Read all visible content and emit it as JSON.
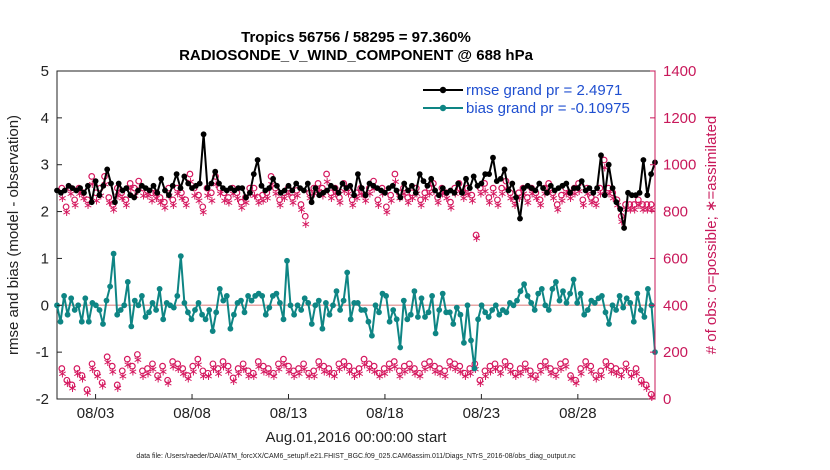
{
  "chart_data": {
    "type": "line",
    "title_line1": "Tropics 56756 / 58295 = 97.360%",
    "title_line2": "RADIOSONDE_V_WIND_COMPONENT @ 688 hPa",
    "ylabel": "rmse and bias (model - observation)",
    "ylabel_right": "# of obs: o=possible; ∗=assimilated",
    "xlabel": "Aug.01,2016 00:00:00 start",
    "footer": "data file: /Users/raeder/DAI/ATM_forcXX/CAM6_setup/f.e21.FHIST_BGC.f09_025.CAM6assim.011/Diags_NTrS_2016-08/obs_diag_output.nc",
    "ylim": [
      -2,
      5
    ],
    "ylim_right": [
      0,
      1400
    ],
    "xlim": [
      1,
      32
    ],
    "x_ticks": [
      3,
      8,
      13,
      18,
      23,
      28
    ],
    "x_tick_labels": [
      "08/03",
      "08/08",
      "08/13",
      "08/18",
      "08/23",
      "08/28"
    ],
    "y_ticks": [
      -2,
      -1,
      0,
      1,
      2,
      3,
      4,
      5
    ],
    "y_ticks_right": [
      0,
      200,
      400,
      600,
      800,
      1000,
      1200,
      1400
    ],
    "legend": [
      {
        "label": "rmse grand pr = 2.4971",
        "color": "#000000"
      },
      {
        "label": "bias grand pr = -0.10975",
        "color": "#0e8584"
      }
    ],
    "colors": {
      "rmse": "#000000",
      "bias": "#0e8584",
      "obs": "#d5185f",
      "zero_line": "#e8a7a7"
    },
    "rmse": [
      2.45,
      2.4,
      2.45,
      2.55,
      2.5,
      2.45,
      2.5,
      2.4,
      2.55,
      2.2,
      2.65,
      2.35,
      2.55,
      2.9,
      2.6,
      2.2,
      2.6,
      2.45,
      2.5,
      2.35,
      2.3,
      2.45,
      2.55,
      2.5,
      2.45,
      2.55,
      2.4,
      2.7,
      2.45,
      2.35,
      2.55,
      2.8,
      2.5,
      2.75,
      2.6,
      2.5,
      2.55,
      2.6,
      3.65,
      2.5,
      2.6,
      2.85,
      2.6,
      2.5,
      2.45,
      2.5,
      2.45,
      2.5,
      2.5,
      2.3,
      2.4,
      2.8,
      3.1,
      2.55,
      2.45,
      2.5,
      2.7,
      2.55,
      2.4,
      2.45,
      2.55,
      2.45,
      2.6,
      2.5,
      2.45,
      2.6,
      2.2,
      2.5,
      2.35,
      2.4,
      2.45,
      2.55,
      2.5,
      2.4,
      2.6,
      2.5,
      2.55,
      2.35,
      2.8,
      2.5,
      2.35,
      2.6,
      2.55,
      2.5,
      2.45,
      2.4,
      2.5,
      2.55,
      2.45,
      2.3,
      2.6,
      2.45,
      2.55,
      2.4,
      2.8,
      2.65,
      2.55,
      2.7,
      2.45,
      2.35,
      2.5,
      2.4,
      2.45,
      2.4,
      2.6,
      2.4,
      2.7,
      2.5,
      2.75,
      2.55,
      2.6,
      2.8,
      2.8,
      3.15,
      2.65,
      2.7,
      2.9,
      2.45,
      2.6,
      2.3,
      1.85,
      2.5,
      2.55,
      2.5,
      2.45,
      2.6,
      2.5,
      2.4,
      2.55,
      2.45,
      2.5,
      2.55,
      2.6,
      2.4,
      2.5,
      2.5,
      2.65,
      2.45,
      2.5,
      2.4,
      2.5,
      3.2,
      2.35,
      3.0,
      2.5,
      2.2,
      2.05,
      1.65,
      2.4,
      2.35,
      2.35,
      2.4,
      3.1,
      2.35,
      2.8,
      3.05
    ],
    "bias": [
      0.0,
      -0.35,
      0.2,
      -0.2,
      0.15,
      -0.1,
      0.0,
      -0.35,
      0.15,
      -0.35,
      0.05,
      0.0,
      -0.1,
      -0.4,
      0.1,
      0.4,
      1.1,
      -0.2,
      -0.1,
      0.0,
      0.5,
      -0.45,
      0.1,
      0.0,
      0.2,
      -0.25,
      -0.15,
      0.05,
      -0.1,
      0.35,
      -0.3,
      0.05,
      0.0,
      -0.05,
      0.2,
      1.05,
      0.05,
      -0.15,
      -0.3,
      -0.1,
      0.05,
      -0.2,
      -0.3,
      -0.1,
      -0.55,
      -0.15,
      0.35,
      0.1,
      0.2,
      -0.5,
      -0.2,
      0.05,
      0.1,
      -0.15,
      0.2,
      0.1,
      0.2,
      0.25,
      0.2,
      -0.2,
      -0.05,
      0.2,
      0.25,
      0.05,
      -0.3,
      0.95,
      0.0,
      -0.2,
      0.0,
      -0.1,
      0.15,
      0.05,
      -0.4,
      0.0,
      0.1,
      -0.5,
      0.05,
      -0.2,
      0.0,
      0.3,
      -0.1,
      0.1,
      0.7,
      -0.3,
      0.05,
      0.05,
      -0.1,
      -0.1,
      -0.35,
      -0.65,
      0.0,
      -0.15,
      0.25,
      0.2,
      -0.35,
      -0.1,
      -0.3,
      -0.9,
      0.1,
      -0.3,
      -0.2,
      0.3,
      -0.25,
      0.15,
      -0.25,
      -0.15,
      0.2,
      -0.6,
      -0.1,
      0.25,
      -0.15,
      -0.15,
      -0.4,
      -0.05,
      -0.2,
      -0.8,
      0.0,
      -0.75,
      -1.35,
      -0.3,
      0.0,
      -0.15,
      -0.25,
      -0.1,
      0.0,
      -0.2,
      -0.1,
      -0.15,
      0.05,
      0.0,
      0.1,
      0.3,
      0.45,
      0.2,
      0.05,
      -0.1,
      0.25,
      0.35,
      0.0,
      -0.1,
      0.35,
      0.5,
      0.1,
      0.3,
      0.05,
      0.25,
      0.55,
      0.05,
      0.25,
      -0.2,
      -0.1,
      0.1,
      0.05,
      0.15,
      0.2,
      -0.15,
      -0.4,
      0.0,
      -0.1,
      0.2,
      -0.05,
      0.15,
      0.05,
      -0.35,
      0.25,
      -0.1,
      -0.25,
      0.35,
      0.0,
      -1.0
    ],
    "obs_possible_top": [
      900,
      820,
      900,
      850,
      900,
      880,
      850,
      950,
      880,
      900,
      950,
      860,
      830,
      900,
      880,
      850,
      920,
      900,
      930,
      900,
      890,
      880,
      880,
      860,
      840,
      900,
      850,
      900,
      880,
      850,
      960,
      900,
      870,
      820,
      900,
      880,
      950,
      900,
      880,
      860,
      900,
      880,
      840,
      860,
      900,
      900,
      860,
      870,
      880,
      950,
      900,
      850,
      880,
      900,
      860,
      890,
      830,
      780,
      880,
      900,
      920,
      900,
      960,
      880,
      900,
      860,
      920,
      900,
      850,
      880,
      900,
      870,
      900,
      930,
      850,
      900,
      820,
      870,
      960,
      880,
      900,
      860,
      880,
      900,
      850,
      880,
      900,
      920,
      860,
      900,
      880,
      840,
      900,
      920,
      880,
      900,
      870,
      700,
      900,
      920,
      860,
      900,
      850,
      900,
      930,
      880,
      850,
      880,
      900,
      860,
      900,
      880,
      850,
      900,
      920,
      880,
      830,
      870,
      900,
      880,
      900,
      920,
      850,
      900,
      860,
      850,
      900,
      1020,
      900,
      880,
      850,
      780,
      830,
      830,
      830,
      850,
      830,
      830,
      830
    ],
    "obs_possible_bottom": [
      130,
      80,
      60,
      130,
      100,
      40,
      150,
      110,
      70,
      180,
      140,
      60,
      120,
      170,
      140,
      190,
      120,
      130,
      150,
      100,
      140,
      80,
      160,
      150,
      130,
      100,
      140,
      170,
      120,
      110,
      150,
      130,
      160,
      140,
      90,
      130,
      150,
      120,
      110,
      160,
      140,
      130,
      110,
      150,
      170,
      140,
      120,
      130,
      150,
      110,
      120,
      160,
      140,
      130,
      110,
      150,
      160,
      140,
      120,
      130,
      170,
      150,
      140,
      110,
      130,
      150,
      160,
      120,
      140,
      150,
      130,
      110,
      150,
      160,
      140,
      130,
      120,
      160,
      150,
      140,
      110,
      130,
      150,
      80,
      120,
      140,
      150,
      130,
      160,
      140,
      110,
      130,
      150,
      120,
      100,
      140,
      160,
      130,
      120,
      150,
      160,
      100,
      80,
      130,
      160,
      140,
      100,
      120,
      160,
      140,
      130,
      120,
      150,
      110,
      130,
      80,
      60,
      20
    ],
    "obs_assim_top": [
      860,
      800,
      880,
      830,
      880,
      860,
      830,
      920,
      850,
      870,
      920,
      840,
      810,
      870,
      860,
      830,
      900,
      870,
      900,
      870,
      870,
      850,
      860,
      840,
      820,
      870,
      830,
      880,
      860,
      830,
      930,
      870,
      850,
      800,
      870,
      850,
      920,
      880,
      850,
      840,
      880,
      860,
      820,
      840,
      880,
      870,
      840,
      850,
      860,
      920,
      880,
      830,
      860,
      880,
      840,
      870,
      810,
      750,
      860,
      880,
      890,
      870,
      930,
      860,
      880,
      840,
      890,
      880,
      830,
      860,
      880,
      850,
      880,
      900,
      830,
      880,
      800,
      850,
      930,
      860,
      880,
      840,
      860,
      880,
      830,
      860,
      880,
      890,
      840,
      880,
      860,
      820,
      880,
      890,
      860,
      880,
      850,
      690,
      880,
      890,
      840,
      880,
      830,
      880,
      900,
      860,
      830,
      860,
      880,
      840,
      880,
      860,
      830,
      880,
      890,
      860,
      810,
      850,
      880,
      860,
      880,
      890,
      830,
      880,
      840,
      830,
      880,
      990,
      880,
      860,
      830,
      760,
      810,
      810,
      810,
      830,
      810,
      810,
      810
    ],
    "obs_assim_bottom": [
      110,
      70,
      50,
      110,
      90,
      30,
      130,
      100,
      60,
      160,
      120,
      50,
      100,
      150,
      120,
      170,
      100,
      110,
      130,
      90,
      120,
      70,
      140,
      130,
      110,
      90,
      120,
      150,
      100,
      100,
      130,
      110,
      140,
      120,
      80,
      110,
      130,
      100,
      100,
      140,
      120,
      110,
      100,
      130,
      150,
      120,
      100,
      110,
      130,
      100,
      100,
      140,
      120,
      110,
      100,
      130,
      140,
      120,
      100,
      110,
      150,
      130,
      120,
      100,
      110,
      130,
      140,
      100,
      120,
      130,
      110,
      100,
      130,
      140,
      120,
      110,
      100,
      140,
      130,
      120,
      100,
      110,
      130,
      70,
      100,
      120,
      130,
      110,
      140,
      120,
      100,
      110,
      130,
      100,
      90,
      120,
      140,
      110,
      100,
      130,
      140,
      90,
      70,
      110,
      140,
      120,
      90,
      100,
      140,
      120,
      110,
      100,
      130,
      100,
      110,
      70,
      50,
      10
    ]
  }
}
